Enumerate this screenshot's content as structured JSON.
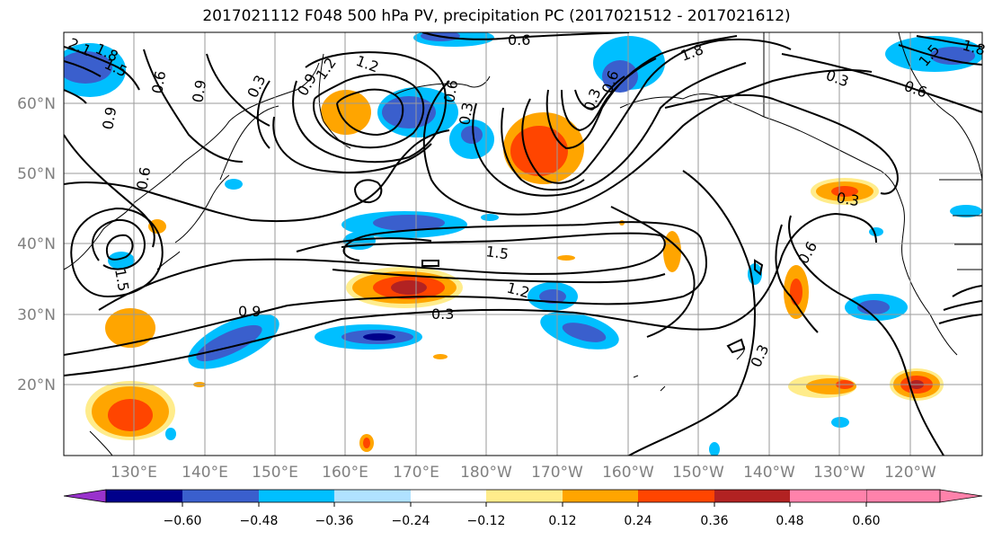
{
  "title": "2017021112 F048 500 hPa PV, precipitation PC (2017021512 - 2017021612)",
  "lat_labels": [
    "60°N",
    "50°N",
    "40°N",
    "30°N",
    "20°N"
  ],
  "lon_labels": [
    "130°E",
    "140°E",
    "150°E",
    "160°E",
    "170°E",
    "180°W",
    "170°W",
    "160°W",
    "150°W",
    "140°W",
    "130°W",
    "120°W"
  ],
  "colorbar": {
    "ticks": [
      "−0.60",
      "−0.48",
      "−0.36",
      "−0.24",
      "−0.12",
      "0.12",
      "0.24",
      "0.36",
      "0.48",
      "0.60"
    ],
    "colors": [
      "#9932cc",
      "#00008b",
      "#3a5fcd",
      "#00bfff",
      "#b0e2ff",
      "#ffffff",
      "#ffec8b",
      "#ffa500",
      "#ff4500",
      "#b22222",
      "#ff82ab"
    ]
  },
  "contour_labels": [
    "1.8",
    "1.5",
    "0.9",
    "1.2",
    "0.3",
    "0.6",
    "1.5",
    "1.2",
    "0.3",
    "0.9",
    "1.2",
    "1.8",
    "0.6",
    "0.3",
    "0.3",
    "0.6",
    "0.3",
    "0.6",
    "0.9",
    "0.9",
    "0.6",
    "0.3",
    "0.6",
    "2.1",
    "1.8",
    "1.5",
    "1.5",
    "0.3",
    "0.6"
  ]
}
